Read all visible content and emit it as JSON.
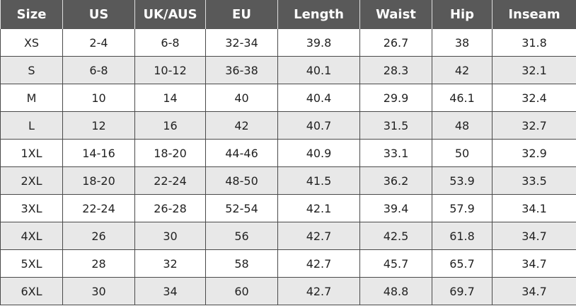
{
  "headers": [
    "Size",
    "US",
    "UK/AUS",
    "EU",
    "Length",
    "Waist",
    "Hip",
    "Inseam"
  ],
  "rows": [
    [
      "XS",
      "2-4",
      "6-8",
      "32-34",
      "39.8",
      "26.7",
      "38",
      "31.8"
    ],
    [
      "S",
      "6-8",
      "10-12",
      "36-38",
      "40.1",
      "28.3",
      "42",
      "32.1"
    ],
    [
      "M",
      "10",
      "14",
      "40",
      "40.4",
      "29.9",
      "46.1",
      "32.4"
    ],
    [
      "L",
      "12",
      "16",
      "42",
      "40.7",
      "31.5",
      "48",
      "32.7"
    ],
    [
      "1XL",
      "14-16",
      "18-20",
      "44-46",
      "40.9",
      "33.1",
      "50",
      "32.9"
    ],
    [
      "2XL",
      "18-20",
      "22-24",
      "48-50",
      "41.5",
      "36.2",
      "53.9",
      "33.5"
    ],
    [
      "3XL",
      "22-24",
      "26-28",
      "52-54",
      "42.1",
      "39.4",
      "57.9",
      "34.1"
    ],
    [
      "4XL",
      "26",
      "30",
      "56",
      "42.7",
      "42.5",
      "61.8",
      "34.7"
    ],
    [
      "5XL",
      "28",
      "32",
      "58",
      "42.7",
      "45.7",
      "65.7",
      "34.7"
    ],
    [
      "6XL",
      "30",
      "34",
      "60",
      "42.7",
      "48.8",
      "69.7",
      "34.7"
    ]
  ],
  "colors": {
    "header_bg": "#595959",
    "header_text": "#ffffff",
    "alt_row_bg": "#e8e8e8"
  }
}
